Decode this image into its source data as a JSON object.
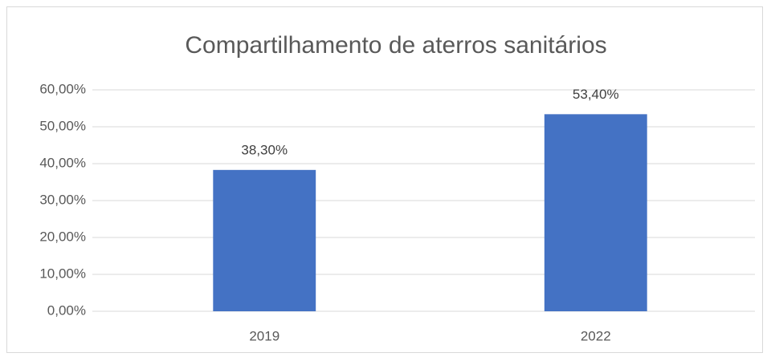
{
  "chart_data": {
    "type": "bar",
    "title": "Compartilhamento de aterros sanitários",
    "categories": [
      "2019",
      "2022"
    ],
    "values": [
      38.3,
      53.4
    ],
    "value_labels": [
      "38,30%",
      "53,40%"
    ],
    "color": "#4472c4",
    "ylim": [
      0,
      60
    ],
    "yticks": [
      {
        "value": 0,
        "label": "0,00%"
      },
      {
        "value": 10,
        "label": "10,00%"
      },
      {
        "value": 20,
        "label": "20,00%"
      },
      {
        "value": 30,
        "label": "30,00%"
      },
      {
        "value": 40,
        "label": "40,00%"
      },
      {
        "value": 50,
        "label": "50,00%"
      },
      {
        "value": 60,
        "label": "60,00%"
      }
    ],
    "grid": true
  }
}
